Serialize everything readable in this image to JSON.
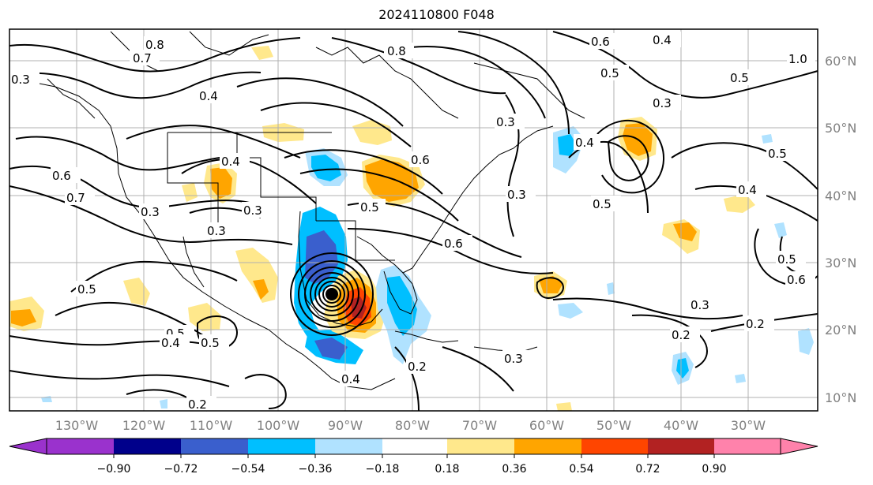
{
  "title": "2024110800 F048",
  "colors": {
    "grid": "#b0b0b0",
    "contour": "#000000",
    "border": "#000000"
  },
  "lon_labels": [
    "130°W",
    "120°W",
    "110°W",
    "100°W",
    "90°W",
    "80°W",
    "70°W",
    "60°W",
    "50°W",
    "40°W",
    "30°W"
  ],
  "lat_labels": [
    "60°N",
    "50°N",
    "40°N",
    "30°N",
    "20°N",
    "10°N"
  ],
  "colorbar": {
    "ticks": [
      "−0.90",
      "−0.72",
      "−0.54",
      "−0.36",
      "−0.18",
      "0.18",
      "0.36",
      "0.54",
      "0.72",
      "0.90"
    ],
    "colors": [
      "#9a32cd",
      "#00008b",
      "#3a5fcd",
      "#00bfff",
      "#b0e2ff",
      "#ffffff",
      "#ffe88c",
      "#ffa500",
      "#ff4500",
      "#b22222",
      "#ff82ab"
    ]
  },
  "contour_labels": [
    "0.4",
    "0.7",
    "0.8",
    "0.3",
    "0.6",
    "0.5",
    "0.4",
    "0.7",
    "0.3",
    "0.3",
    "0.3",
    "0.5",
    "0.4",
    "0.5",
    "0.4",
    "0.2",
    "0.3",
    "0.6",
    "0.3",
    "0.3",
    "0.5",
    "0.4",
    "0.5",
    "0.3",
    "0.2",
    "0.2",
    "0.5",
    "0.6",
    "0.2",
    "0.3",
    "1.0",
    "0.5",
    "0.4",
    "0.6",
    "0.5",
    "0.4",
    "0.8",
    "0.6",
    "0.5"
  ]
}
